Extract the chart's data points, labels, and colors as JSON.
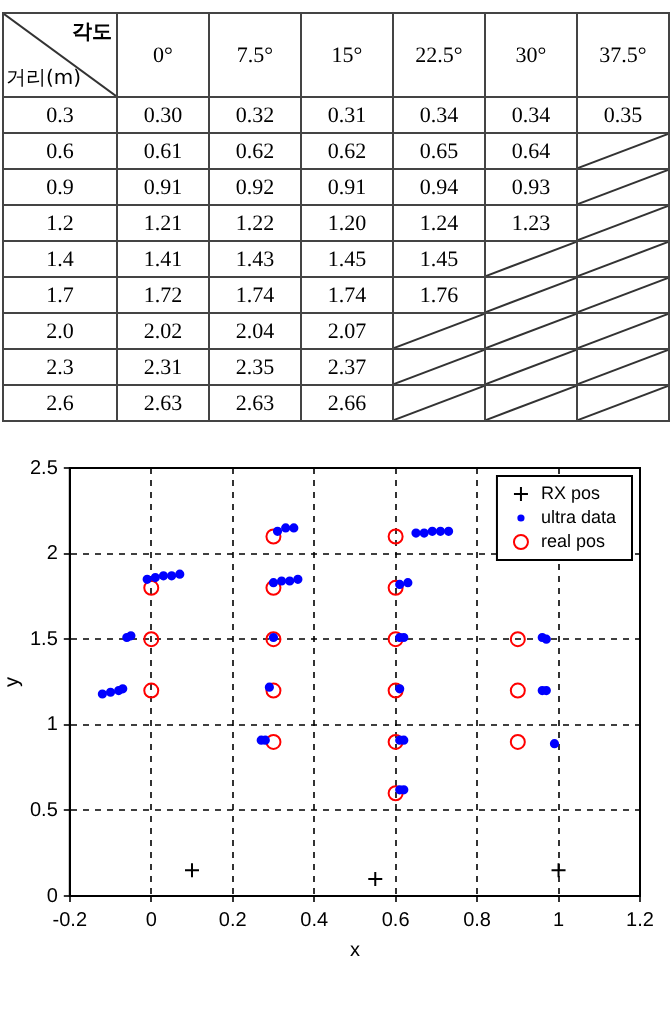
{
  "chart_data": [
    {
      "type": "heatmap",
      "xlabel": "각도",
      "ylabel": "거리(m)",
      "categories": [
        "0°",
        "7.5°",
        "15°",
        "22.5°",
        "30°",
        "37.5°"
      ],
      "y_categories": [
        "0.3",
        "0.6",
        "0.9",
        "1.2",
        "1.4",
        "1.7",
        "2.0",
        "2.3",
        "2.6"
      ],
      "cells": [
        [
          0.3,
          0.32,
          0.31,
          0.34,
          0.34,
          0.35
        ],
        [
          0.61,
          0.62,
          0.62,
          0.65,
          0.64,
          null
        ],
        [
          0.91,
          0.92,
          0.91,
          0.94,
          0.93,
          null
        ],
        [
          1.21,
          1.22,
          1.2,
          1.24,
          1.23,
          null
        ],
        [
          1.41,
          1.43,
          1.45,
          1.45,
          null,
          null
        ],
        [
          1.72,
          1.74,
          1.74,
          1.76,
          null,
          null
        ],
        [
          2.02,
          2.04,
          2.07,
          null,
          null,
          null
        ],
        [
          2.31,
          2.35,
          2.37,
          null,
          null,
          null
        ],
        [
          2.63,
          2.63,
          2.66,
          null,
          null,
          null
        ]
      ],
      "cell_labels": [
        [
          "0.30",
          "0.32",
          "0.31",
          "0.34",
          "0.34",
          "0.35"
        ],
        [
          "0.61",
          "0.62",
          "0.62",
          "0.65",
          "0.64",
          null
        ],
        [
          "0.91",
          "0.92",
          "0.91",
          "0.94",
          "0.93",
          null
        ],
        [
          "1.21",
          "1.22",
          "1.20",
          "1.24",
          "1.23",
          null
        ],
        [
          "1.41",
          "1.43",
          "1.45",
          "1.45",
          null,
          null
        ],
        [
          "1.72",
          "1.74",
          "1.74",
          "1.76",
          null,
          null
        ],
        [
          "2.02",
          "2.04",
          "2.07",
          null,
          null,
          null
        ],
        [
          "2.31",
          "2.35",
          "2.37",
          null,
          null,
          null
        ],
        [
          "2.63",
          "2.63",
          "2.66",
          null,
          null,
          null
        ]
      ]
    },
    {
      "type": "scatter",
      "xlabel": "x",
      "ylabel": "y",
      "xlim": [
        -0.2,
        1.2
      ],
      "xticks": [
        -0.2,
        0,
        0.2,
        0.4,
        0.6,
        0.8,
        1,
        1.2
      ],
      "ylim": [
        0,
        2.5
      ],
      "yticks": [
        0,
        0.5,
        1,
        1.5,
        2,
        2.5
      ],
      "grid": true,
      "legend": "top right",
      "series": [
        {
          "name": "RX pos",
          "color": "#000000",
          "marker": "cross",
          "x": [
            0.1,
            0.55,
            1
          ],
          "values": [
            0.15,
            0.1,
            0.15
          ]
        },
        {
          "name": "ultra data",
          "color": "#0000ff",
          "marker": "circle",
          "x": [
            -0.12,
            -0.1,
            -0.08,
            -0.07,
            -0.06,
            -0.05,
            -0.01,
            0.01,
            0.03,
            0.05,
            0.07,
            0.27,
            0.28,
            0.29,
            0.3,
            0.3,
            0.32,
            0.34,
            0.36,
            0.31,
            0.33,
            0.35,
            0.61,
            0.62,
            0.61,
            0.62,
            0.61,
            0.61,
            0.62,
            0.61,
            0.63,
            0.65,
            0.67,
            0.69,
            0.71,
            0.73,
            0.96,
            0.97,
            0.96,
            0.97,
            0.99
          ],
          "values": [
            1.18,
            1.19,
            1.2,
            1.21,
            1.51,
            1.52,
            1.85,
            1.86,
            1.87,
            1.87,
            1.88,
            0.91,
            0.91,
            1.22,
            1.51,
            1.83,
            1.84,
            1.84,
            1.85,
            2.13,
            2.15,
            2.15,
            0.62,
            0.62,
            0.91,
            0.91,
            1.21,
            1.51,
            1.51,
            1.82,
            1.83,
            2.12,
            2.12,
            2.13,
            2.13,
            2.13,
            1.2,
            1.2,
            1.51,
            1.5,
            0.89
          ]
        },
        {
          "name": "real pos",
          "color": "#ff0000",
          "marker": "open-circle",
          "x": [
            0,
            0,
            0,
            0.3,
            0.3,
            0.3,
            0.3,
            0.3,
            0.6,
            0.6,
            0.6,
            0.6,
            0.6,
            0.6,
            0.9,
            0.9,
            0.9
          ],
          "values": [
            1.2,
            1.5,
            1.8,
            0.9,
            1.2,
            1.5,
            1.8,
            2.1,
            0.6,
            0.9,
            1.2,
            1.5,
            1.8,
            2.1,
            0.9,
            1.2,
            1.5
          ]
        }
      ]
    }
  ]
}
